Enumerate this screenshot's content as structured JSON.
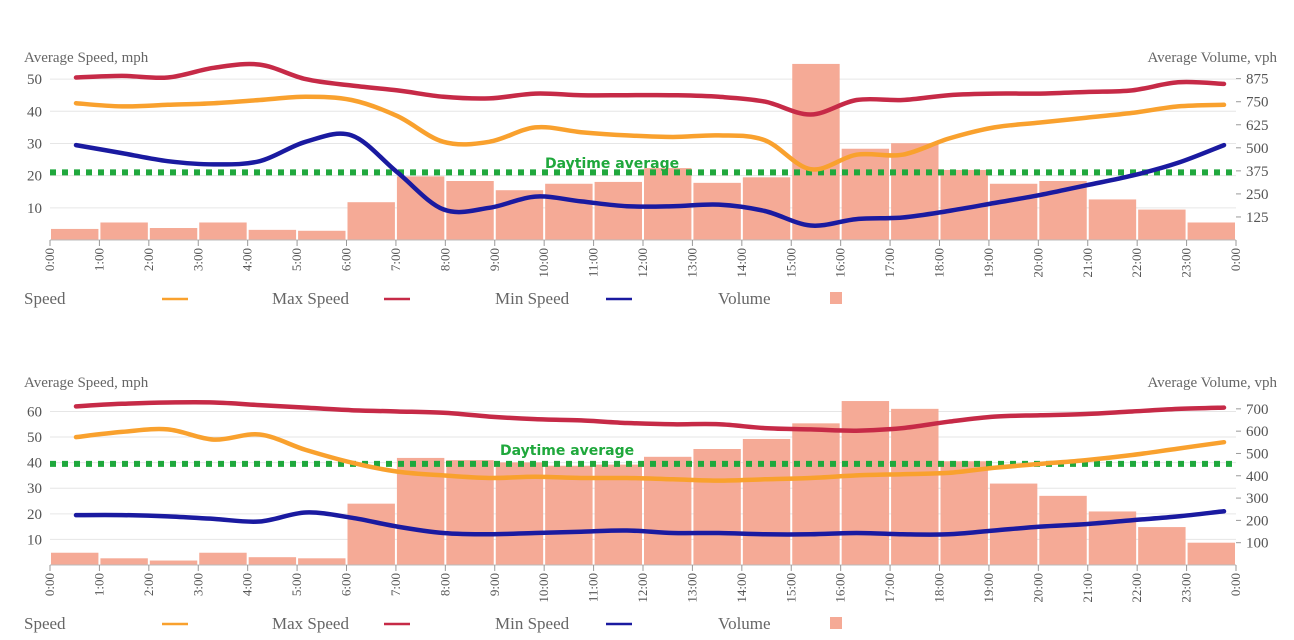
{
  "colors": {
    "speed": "#f9a12e",
    "max_speed": "#c62a47",
    "min_speed": "#1a1aa0",
    "volume": "#f5aa96",
    "daytime_line": "#1fa83c",
    "grid": "#e6e6e6"
  },
  "legend": {
    "speed": "Speed",
    "max_speed": "Max Speed",
    "min_speed": "Min Speed",
    "volume": "Volume"
  },
  "chart_data": [
    {
      "type": "bar+line",
      "ylabel_left": "Average Speed, mph",
      "ylabel_right": "Average Volume, vph",
      "x_ticks": [
        "0:00",
        "1:00",
        "2:00",
        "3:00",
        "4:00",
        "5:00",
        "6:00",
        "7:00",
        "8:00",
        "9:00",
        "10:00",
        "11:00",
        "12:00",
        "13:00",
        "14:00",
        "15:00",
        "16:00",
        "17:00",
        "18:00",
        "19:00",
        "20:00",
        "21:00",
        "22:00",
        "23:00",
        "0:00"
      ],
      "left_ticks": [
        10,
        20,
        30,
        40,
        50
      ],
      "right_ticks": [
        125,
        250,
        375,
        500,
        625,
        750,
        875
      ],
      "ylim_left": [
        0,
        55
      ],
      "ylim_right": [
        0,
        960
      ],
      "annotation": {
        "text": "Daytime average",
        "y": 21
      },
      "volume": [
        60,
        95,
        65,
        95,
        55,
        50,
        205,
        345,
        320,
        270,
        305,
        315,
        390,
        310,
        340,
        955,
        495,
        525,
        380,
        305,
        320,
        220,
        165,
        95
      ],
      "series": [
        {
          "key": "max_speed",
          "name": "Max Speed",
          "values": [
            50.5,
            51,
            50.5,
            53.5,
            54.5,
            50,
            48,
            46.5,
            44.5,
            44,
            45.5,
            45,
            45,
            45,
            44.5,
            43,
            39,
            43.5,
            43.5,
            45,
            45.5,
            45.5,
            46,
            46.5,
            49,
            48.5
          ]
        },
        {
          "key": "speed",
          "name": "Speed",
          "values": [
            42.5,
            41.5,
            42,
            42.5,
            43.5,
            44.5,
            43.5,
            38.5,
            30.5,
            30.5,
            35,
            33.5,
            32.5,
            32,
            32.5,
            31,
            22,
            26.5,
            26.5,
            31.5,
            35,
            36.5,
            38,
            39.5,
            41.5,
            42
          ]
        },
        {
          "key": "min_speed",
          "name": "Min Speed",
          "values": [
            29.5,
            27,
            24.5,
            23.5,
            24.5,
            30.5,
            32.5,
            21,
            9.5,
            10,
            13.5,
            12,
            10.5,
            10.5,
            11,
            9,
            4.5,
            6.5,
            7,
            9,
            11.5,
            14,
            17,
            20,
            24,
            29.5
          ]
        }
      ]
    },
    {
      "type": "bar+line",
      "ylabel_left": "Average Speed, mph",
      "ylabel_right": "Average Volume, vph",
      "x_ticks": [
        "0:00",
        "1:00",
        "2:00",
        "3:00",
        "4:00",
        "5:00",
        "6:00",
        "7:00",
        "8:00",
        "9:00",
        "10:00",
        "11:00",
        "12:00",
        "13:00",
        "14:00",
        "15:00",
        "16:00",
        "17:00",
        "18:00",
        "19:00",
        "20:00",
        "21:00",
        "22:00",
        "23:00",
        "0:00"
      ],
      "left_ticks": [
        10,
        20,
        30,
        40,
        50,
        60
      ],
      "right_ticks": [
        100,
        200,
        300,
        400,
        500,
        600,
        700
      ],
      "ylim_left": [
        0,
        68
      ],
      "ylim_right": [
        0,
        780
      ],
      "annotation": {
        "text": "Daytime average",
        "y": 39.5
      },
      "volume": [
        55,
        30,
        20,
        55,
        35,
        30,
        275,
        480,
        470,
        460,
        445,
        450,
        485,
        520,
        565,
        635,
        735,
        700,
        465,
        365,
        310,
        240,
        170,
        100
      ],
      "series": [
        {
          "key": "max_speed",
          "name": "Max Speed",
          "values": [
            62,
            63,
            63.5,
            63.5,
            62.5,
            61.5,
            60.5,
            60,
            59.5,
            58,
            57,
            56.5,
            55.5,
            55,
            55,
            53.5,
            53,
            52.5,
            53.5,
            56,
            58,
            58.5,
            59,
            60,
            61,
            61.5
          ]
        },
        {
          "key": "speed",
          "name": "Speed",
          "values": [
            50,
            52,
            53,
            49,
            51,
            45,
            40,
            36.5,
            35,
            34,
            34.5,
            34,
            34,
            33.5,
            33,
            33.5,
            34,
            35,
            35.5,
            36,
            38,
            39.5,
            41,
            43,
            45.5,
            48
          ]
        },
        {
          "key": "min_speed",
          "name": "Min Speed",
          "values": [
            19.5,
            19.5,
            19,
            18,
            17,
            20.5,
            18.5,
            15,
            12.5,
            12,
            12.5,
            13,
            13.5,
            12.5,
            12.5,
            12,
            12,
            12.5,
            12,
            12,
            13.5,
            15,
            16,
            17.5,
            19,
            21
          ]
        }
      ]
    }
  ]
}
